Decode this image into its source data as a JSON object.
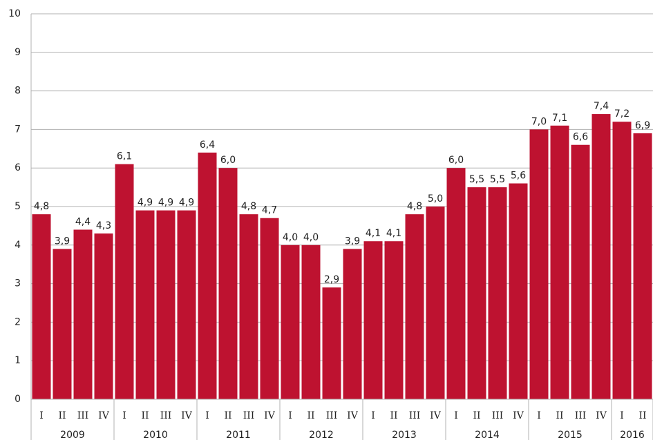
{
  "chart_data": {
    "type": "bar",
    "groups": [
      {
        "label": "2009",
        "categories": [
          "I",
          "II",
          "III",
          "IV"
        ]
      },
      {
        "label": "2010",
        "categories": [
          "I",
          "II",
          "III",
          "IV"
        ]
      },
      {
        "label": "2011",
        "categories": [
          "I",
          "II",
          "III",
          "IV"
        ]
      },
      {
        "label": "2012",
        "categories": [
          "I",
          "II",
          "III",
          "IV"
        ]
      },
      {
        "label": "2013",
        "categories": [
          "I",
          "II",
          "III",
          "IV"
        ]
      },
      {
        "label": "2014",
        "categories": [
          "I",
          "II",
          "III",
          "IV"
        ]
      },
      {
        "label": "2015",
        "categories": [
          "I",
          "II",
          "III",
          "IV"
        ]
      },
      {
        "label": "2016",
        "categories": [
          "I",
          "II"
        ]
      }
    ],
    "values": [
      4.8,
      3.9,
      4.4,
      4.3,
      6.1,
      4.9,
      4.9,
      4.9,
      6.4,
      6.0,
      4.8,
      4.7,
      4.0,
      4.0,
      2.9,
      3.9,
      4.1,
      4.1,
      4.8,
      5.0,
      6.0,
      5.5,
      5.5,
      5.6,
      7.0,
      7.1,
      6.6,
      7.4,
      7.2,
      6.9
    ],
    "value_labels": [
      "4,8",
      "3,9",
      "4,4",
      "4,3",
      "6,1",
      "4,9",
      "4,9",
      "4,9",
      "6,4",
      "6,0",
      "4,8",
      "4,7",
      "4,0",
      "4,0",
      "2,9",
      "3,9",
      "4,1",
      "4,1",
      "4,8",
      "5,0",
      "6,0",
      "5,5",
      "5,5",
      "5,6",
      "7,0",
      "7,1",
      "6,6",
      "7,4",
      "7,2",
      "6,9"
    ],
    "color": "#be1230",
    "ylim": [
      0,
      10
    ],
    "yticks": [
      0,
      1,
      2,
      3,
      4,
      5,
      6,
      7,
      8,
      9,
      10
    ],
    "grid": true
  }
}
